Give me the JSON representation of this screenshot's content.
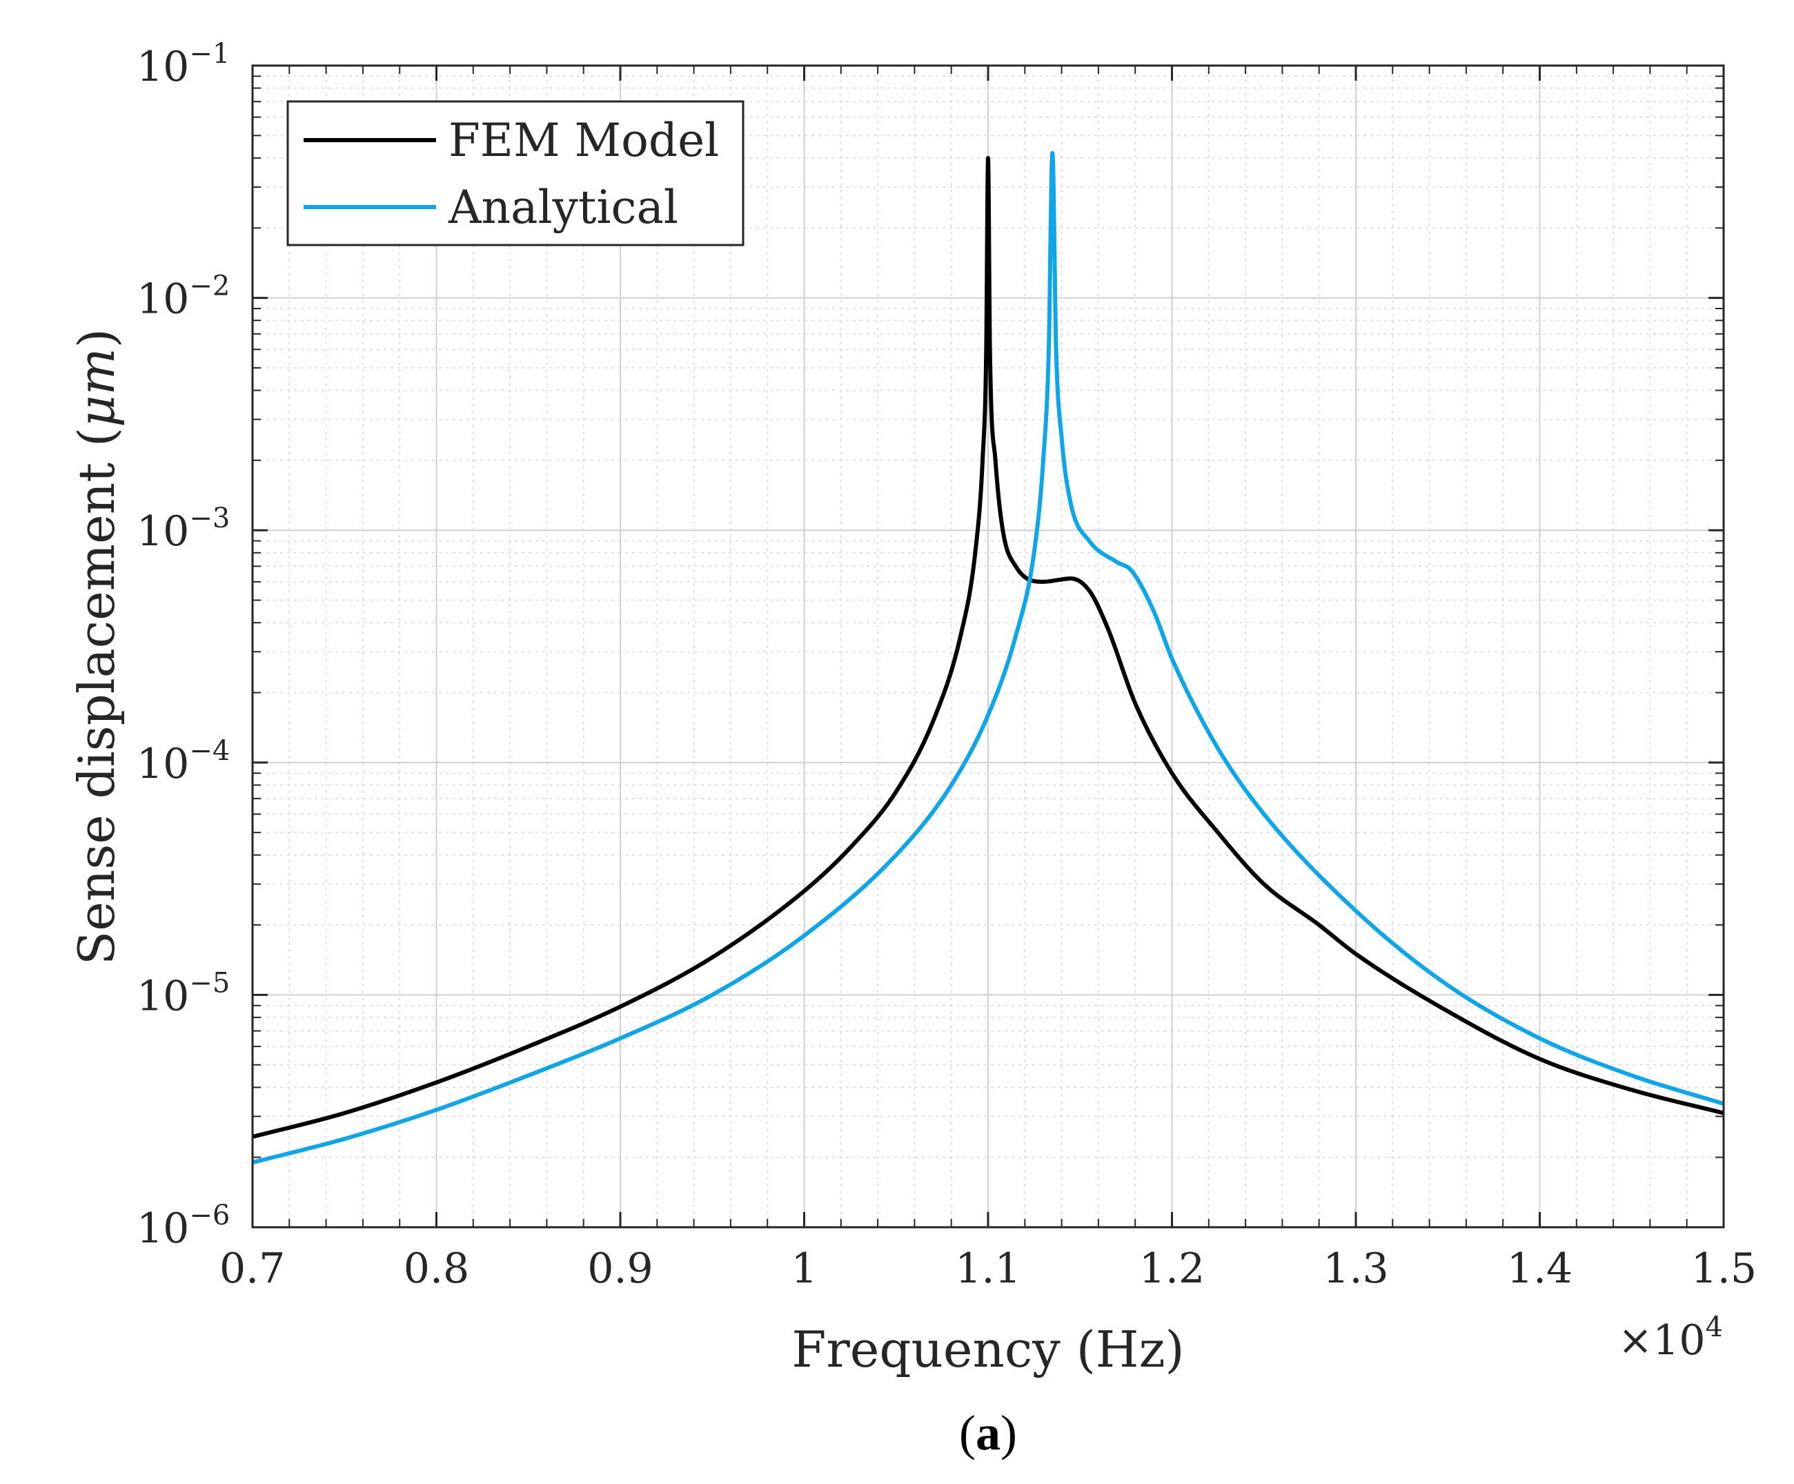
{
  "chart_data": {
    "type": "line",
    "xscale": "linear",
    "yscale": "log",
    "xlim": [
      7000,
      15000
    ],
    "ylim": [
      1e-06,
      0.1
    ],
    "grid": true,
    "minor_grid": true,
    "xlabel": "Frequency (Hz)",
    "ylabel_prefix": "Sense displacement (",
    "ylabel_unit": "μm",
    "ylabel_suffix": ")",
    "x_multiplier_base": "×10",
    "x_multiplier_exp": "4",
    "x_ticks": [
      {
        "value": 7000,
        "label": "0.7"
      },
      {
        "value": 8000,
        "label": "0.8"
      },
      {
        "value": 9000,
        "label": "0.9"
      },
      {
        "value": 10000,
        "label": "1"
      },
      {
        "value": 11000,
        "label": "1.1"
      },
      {
        "value": 12000,
        "label": "1.2"
      },
      {
        "value": 13000,
        "label": "1.3"
      },
      {
        "value": 14000,
        "label": "1.4"
      },
      {
        "value": 15000,
        "label": "1.5"
      }
    ],
    "y_ticks": [
      {
        "value": 0.1,
        "base": "10",
        "exp": "−1"
      },
      {
        "value": 0.01,
        "base": "10",
        "exp": "−2"
      },
      {
        "value": 0.001,
        "base": "10",
        "exp": "−3"
      },
      {
        "value": 0.0001,
        "base": "10",
        "exp": "−4"
      },
      {
        "value": 1e-05,
        "base": "10",
        "exp": "−5"
      },
      {
        "value": 1e-06,
        "base": "10",
        "exp": "−6"
      }
    ],
    "legend_position": "top-left",
    "series": [
      {
        "name": "FEM Model",
        "color": "#000000",
        "points": [
          [
            7000,
            2.45e-06
          ],
          [
            7500,
            3.1e-06
          ],
          [
            8000,
            4.2e-06
          ],
          [
            8500,
            6e-06
          ],
          [
            9000,
            8.9e-06
          ],
          [
            9500,
            1.45e-05
          ],
          [
            10000,
            2.8e-05
          ],
          [
            10250,
            4.3e-05
          ],
          [
            10500,
            7.5e-05
          ],
          [
            10700,
            0.00015
          ],
          [
            10850,
            0.00035
          ],
          [
            10930,
            0.0008
          ],
          [
            10970,
            0.002
          ],
          [
            10990,
            0.006
          ],
          [
            11000,
            0.04
          ],
          [
            11010,
            0.006
          ],
          [
            11040,
            0.002
          ],
          [
            11080,
            0.001
          ],
          [
            11150,
            0.0007
          ],
          [
            11300,
            0.0006
          ],
          [
            11450,
            0.00062
          ],
          [
            11550,
            0.00055
          ],
          [
            11650,
            0.00038
          ],
          [
            11800,
            0.00018
          ],
          [
            12000,
            9e-05
          ],
          [
            12250,
            5e-05
          ],
          [
            12500,
            3e-05
          ],
          [
            12800,
            2e-05
          ],
          [
            13000,
            1.5e-05
          ],
          [
            13500,
            8.5e-06
          ],
          [
            14000,
            5.3e-06
          ],
          [
            14500,
            3.9e-06
          ],
          [
            15000,
            3.1e-06
          ]
        ]
      },
      {
        "name": "Analytical",
        "color": "#0ea5e9",
        "points": [
          [
            7000,
            1.9e-06
          ],
          [
            7500,
            2.4e-06
          ],
          [
            8000,
            3.2e-06
          ],
          [
            8500,
            4.5e-06
          ],
          [
            9000,
            6.5e-06
          ],
          [
            9500,
            1e-05
          ],
          [
            10000,
            1.8e-05
          ],
          [
            10500,
            4e-05
          ],
          [
            10800,
            8e-05
          ],
          [
            11000,
            0.00016
          ],
          [
            11150,
            0.00035
          ],
          [
            11250,
            0.0008
          ],
          [
            11300,
            0.002
          ],
          [
            11330,
            0.006
          ],
          [
            11350,
            0.042
          ],
          [
            11370,
            0.006
          ],
          [
            11400,
            0.0025
          ],
          [
            11450,
            0.0013
          ],
          [
            11550,
            0.0009
          ],
          [
            11700,
            0.00073
          ],
          [
            11780,
            0.00067
          ],
          [
            11900,
            0.00045
          ],
          [
            12000,
            0.00028
          ],
          [
            12250,
            0.000115
          ],
          [
            12500,
            6e-05
          ],
          [
            13000,
            2.3e-05
          ],
          [
            13500,
            1.1e-05
          ],
          [
            14000,
            6.5e-06
          ],
          [
            14500,
            4.5e-06
          ],
          [
            15000,
            3.4e-06
          ]
        ]
      }
    ]
  },
  "caption": {
    "open": "(",
    "letter": "a",
    "close": ")"
  }
}
